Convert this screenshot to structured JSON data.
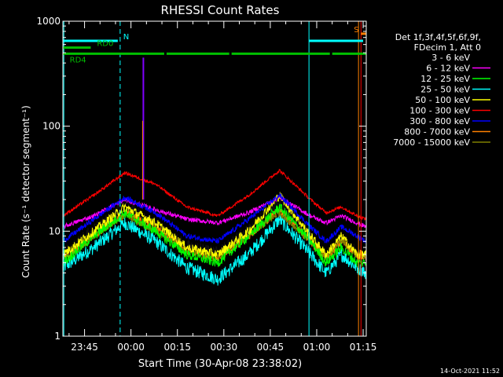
{
  "chart_data": {
    "type": "line",
    "title": "RHESSI Count Rates",
    "xlabel": "Start Time (30-Apr-08 23:38:02)",
    "ylabel": "Count Rate (s⁻¹ detector segment⁻¹)",
    "yscale": "log",
    "ylim": [
      1,
      1000
    ],
    "xlim_minutes_from_start": [
      0,
      98
    ],
    "y_ticks": [
      "1",
      "10",
      "100",
      "1000"
    ],
    "x_ticks": [
      {
        "label": "23:45",
        "minute": 7
      },
      {
        "label": "00:00",
        "minute": 22
      },
      {
        "label": "00:15",
        "minute": 37
      },
      {
        "label": "00:30",
        "minute": 52
      },
      {
        "label": "00:45",
        "minute": 67
      },
      {
        "label": "01:00",
        "minute": 82
      },
      {
        "label": "01:15",
        "minute": 97
      }
    ],
    "legend_header": [
      "Det 1f,3f,4f,5f,6f,9f,",
      "FDecim 1, Att 0"
    ],
    "legend_position": "right",
    "footer": "14-Oct-2021 11:52",
    "series": [
      {
        "name": "3 - 6 keV",
        "color": "#000000",
        "x": [
          0,
          10,
          20,
          30,
          40,
          50,
          60,
          70,
          80,
          85,
          90,
          95,
          98
        ],
        "y": [
          6,
          10,
          17,
          11,
          7,
          6,
          10,
          19,
          9,
          5,
          8,
          6,
          5
        ]
      },
      {
        "name": "6 - 12 keV",
        "color": "#ff00ff",
        "x": [
          0,
          10,
          20,
          30,
          40,
          50,
          60,
          70,
          80,
          85,
          90,
          95,
          98
        ],
        "y": [
          11,
          14,
          20,
          16,
          13,
          12,
          15,
          21,
          14,
          12,
          14,
          12,
          11
        ]
      },
      {
        "name": "12 - 25 keV",
        "color": "#00ff00",
        "x": [
          0,
          10,
          20,
          30,
          40,
          50,
          60,
          70,
          80,
          85,
          90,
          95,
          98
        ],
        "y": [
          5,
          9,
          15,
          10,
          6,
          5,
          9,
          17,
          8,
          5,
          7,
          5,
          5
        ]
      },
      {
        "name": "25 - 50 keV",
        "color": "#00ffff",
        "x": [
          0,
          10,
          20,
          30,
          40,
          50,
          60,
          70,
          80,
          85,
          90,
          95,
          98
        ],
        "y": [
          4.5,
          7,
          12,
          8,
          4.5,
          3.5,
          6,
          13,
          6,
          4,
          6,
          4.5,
          4
        ]
      },
      {
        "name": "50 - 100 keV",
        "color": "#ffff00",
        "x": [
          0,
          10,
          20,
          30,
          40,
          50,
          60,
          70,
          80,
          85,
          90,
          95,
          98
        ],
        "y": [
          6,
          10,
          17,
          12,
          7,
          6,
          10,
          22,
          9,
          6,
          9,
          6,
          6
        ]
      },
      {
        "name": "100 - 300 keV",
        "color": "#ff0000",
        "x": [
          0,
          10,
          20,
          30,
          40,
          50,
          60,
          70,
          80,
          85,
          90,
          95,
          98
        ],
        "y": [
          14,
          22,
          36,
          28,
          17,
          14,
          22,
          38,
          20,
          15,
          17,
          14,
          13
        ]
      },
      {
        "name": "300 - 800 keV",
        "color": "#0000ff",
        "x": [
          0,
          10,
          20,
          30,
          40,
          50,
          60,
          70,
          80,
          85,
          90,
          95,
          98
        ],
        "y": [
          8,
          13,
          21,
          15,
          9,
          8,
          13,
          22,
          11,
          8,
          11,
          9,
          8
        ]
      },
      {
        "name": "800 - 7000 keV",
        "color": "#ff8000",
        "x": [
          0,
          10,
          20,
          30,
          40,
          50,
          60,
          70,
          80,
          85,
          90,
          95,
          98
        ],
        "y": [
          5.5,
          9,
          15,
          11,
          6.5,
          5.5,
          9,
          16,
          8,
          5.5,
          8,
          6,
          5.5
        ]
      },
      {
        "name": "7000 - 15000 keV",
        "color": "#808000",
        "x": [
          0,
          10,
          20,
          30,
          40,
          50,
          60,
          70,
          80,
          85,
          90,
          95,
          98
        ],
        "y": [
          6,
          9,
          14,
          10,
          6.5,
          5.8,
          9,
          15,
          8,
          5.8,
          8,
          6,
          5.8
        ]
      }
    ],
    "spike": {
      "x_minute": 26,
      "y_peak": 450,
      "y_base": 20,
      "color": "#8000ff"
    },
    "vertical_lines": [
      {
        "x_minute": 0.3,
        "style": "solid",
        "color": "#00ffff"
      },
      {
        "x_minute": 18.5,
        "style": "dashed",
        "color": "#00ffff"
      },
      {
        "x_minute": 79.5,
        "style": "solid",
        "color": "#00ffff"
      },
      {
        "x_minute": 95.5,
        "style": "solid",
        "color": "#ff8000"
      },
      {
        "x_minute": 96.3,
        "style": "solid",
        "color": "#ff0000"
      },
      {
        "x_minute": 98,
        "style": "dashed",
        "color": "#00ffff"
      }
    ],
    "flag_bars": [
      {
        "label": "N",
        "color": "#00ffff",
        "y_value": 650,
        "segments": [
          [
            0,
            18.5
          ],
          [
            79.5,
            97
          ]
        ],
        "label_x": 19.5
      },
      {
        "label": "RD0",
        "color": "#00c000",
        "y_value": 560,
        "segments": [
          [
            0,
            9
          ]
        ],
        "label_x": 11
      },
      {
        "label": "RD4",
        "color": "#00c000",
        "y_value": 490,
        "segments": [
          [
            0,
            33.5
          ],
          [
            33.5,
            54.5
          ],
          [
            54.5,
            87
          ],
          [
            87,
            98
          ]
        ],
        "label_x": 2.2
      },
      {
        "label": "S",
        "color": "#ff8000",
        "y_value": 760,
        "segments": [
          [
            96.3,
            98
          ]
        ],
        "label_x": 94
      }
    ]
  }
}
